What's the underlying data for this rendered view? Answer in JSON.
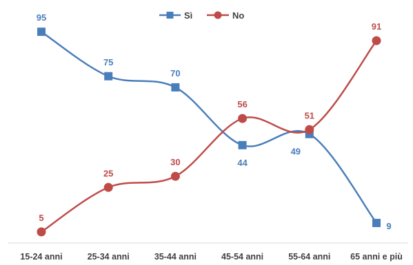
{
  "chart_data": {
    "type": "line",
    "title": "",
    "xlabel": "",
    "ylabel": "",
    "ylim": [
      0,
      100
    ],
    "grid": false,
    "legend_position": "top-center",
    "categories": [
      "15-24 anni",
      "25-34 anni",
      "35-44 anni",
      "45-54 anni",
      "55-64 anni",
      "65 anni e più"
    ],
    "series": [
      {
        "name": "Sì",
        "values": [
          95,
          75,
          70,
          44,
          49,
          9
        ],
        "color": "#4a7ebb",
        "marker": "square"
      },
      {
        "name": "No",
        "values": [
          5,
          25,
          30,
          56,
          51,
          91
        ],
        "color": "#be4b48",
        "marker": "circle"
      }
    ]
  }
}
